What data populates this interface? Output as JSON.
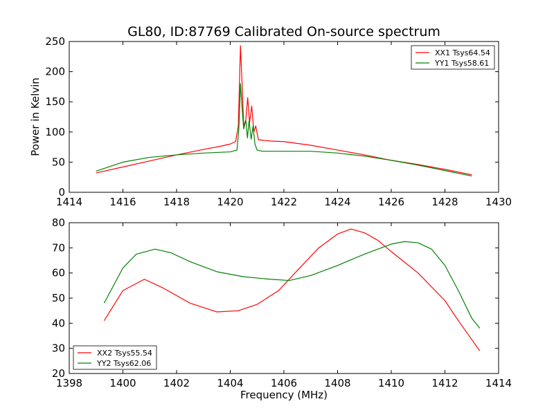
{
  "chart_data": [
    {
      "type": "line",
      "title": "GL80, ID:87769 Calibrated On-source spectrum",
      "xlabel": "",
      "ylabel": "Power in Kelvin",
      "xlim": [
        1414,
        1430
      ],
      "ylim": [
        0,
        250
      ],
      "xticks": [
        1414,
        1416,
        1418,
        1420,
        1422,
        1424,
        1426,
        1428,
        1430
      ],
      "yticks": [
        0,
        50,
        100,
        150,
        200,
        250
      ],
      "legend_position": "top-right",
      "series": [
        {
          "name": "XX1 Tsys64.54",
          "color": "#ff0000",
          "points": [
            [
              1415.0,
              32
            ],
            [
              1416.0,
              42
            ],
            [
              1417.0,
              52
            ],
            [
              1418.0,
              62
            ],
            [
              1419.0,
              71
            ],
            [
              1419.6,
              76
            ],
            [
              1420.0,
              80
            ],
            [
              1420.2,
              84
            ],
            [
              1420.3,
              110
            ],
            [
              1420.38,
              243
            ],
            [
              1420.45,
              170
            ],
            [
              1420.5,
              110
            ],
            [
              1420.58,
              120
            ],
            [
              1420.65,
              157
            ],
            [
              1420.72,
              115
            ],
            [
              1420.8,
              143
            ],
            [
              1420.88,
              100
            ],
            [
              1420.95,
              110
            ],
            [
              1421.05,
              87
            ],
            [
              1421.5,
              85
            ],
            [
              1422.0,
              84
            ],
            [
              1423.0,
              78
            ],
            [
              1424.0,
              70
            ],
            [
              1425.0,
              62
            ],
            [
              1426.0,
              53
            ],
            [
              1427.0,
              46
            ],
            [
              1428.0,
              38
            ],
            [
              1429.0,
              29
            ]
          ]
        },
        {
          "name": "YY1 Tsys58.61",
          "color": "#008000",
          "points": [
            [
              1415.0,
              35
            ],
            [
              1416.0,
              50
            ],
            [
              1417.0,
              58
            ],
            [
              1418.0,
              62
            ],
            [
              1419.0,
              65
            ],
            [
              1420.0,
              67
            ],
            [
              1420.25,
              70
            ],
            [
              1420.32,
              105
            ],
            [
              1420.38,
              180
            ],
            [
              1420.44,
              140
            ],
            [
              1420.5,
              105
            ],
            [
              1420.58,
              120
            ],
            [
              1420.64,
              90
            ],
            [
              1420.7,
              118
            ],
            [
              1420.78,
              88
            ],
            [
              1420.85,
              110
            ],
            [
              1420.92,
              80
            ],
            [
              1421.0,
              70
            ],
            [
              1421.2,
              68
            ],
            [
              1422.0,
              68
            ],
            [
              1423.0,
              68
            ],
            [
              1424.0,
              65
            ],
            [
              1425.0,
              60
            ],
            [
              1426.0,
              53
            ],
            [
              1427.0,
              45
            ],
            [
              1428.0,
              36
            ],
            [
              1429.0,
              27
            ]
          ]
        }
      ]
    },
    {
      "type": "line",
      "title": "",
      "xlabel": "Frequency (MHz)",
      "ylabel": "",
      "xlim": [
        1398,
        1414
      ],
      "ylim": [
        20,
        80
      ],
      "xticks": [
        1398,
        1400,
        1402,
        1404,
        1406,
        1408,
        1410,
        1412,
        1414
      ],
      "yticks": [
        20,
        30,
        40,
        50,
        60,
        70,
        80
      ],
      "legend_position": "bottom-left",
      "series": [
        {
          "name": "XX2 Tsys55.54",
          "color": "#ff0000",
          "points": [
            [
              1399.3,
              41
            ],
            [
              1400.0,
              53
            ],
            [
              1400.8,
              57.5
            ],
            [
              1401.5,
              54
            ],
            [
              1402.5,
              48
            ],
            [
              1403.5,
              44.5
            ],
            [
              1404.3,
              45
            ],
            [
              1405.0,
              47.5
            ],
            [
              1405.8,
              53
            ],
            [
              1406.5,
              61
            ],
            [
              1407.3,
              70
            ],
            [
              1408.0,
              75.5
            ],
            [
              1408.5,
              77.5
            ],
            [
              1409.0,
              76
            ],
            [
              1409.5,
              73
            ],
            [
              1410.0,
              68.5
            ],
            [
              1411.0,
              60
            ],
            [
              1412.0,
              49
            ],
            [
              1412.5,
              41
            ],
            [
              1413.3,
              29
            ]
          ]
        },
        {
          "name": "YY2 Tsys62.06",
          "color": "#008000",
          "points": [
            [
              1399.3,
              48
            ],
            [
              1400.0,
              62
            ],
            [
              1400.5,
              67.5
            ],
            [
              1401.2,
              69.5
            ],
            [
              1401.8,
              68
            ],
            [
              1402.5,
              64.5
            ],
            [
              1403.5,
              60.5
            ],
            [
              1404.5,
              58.5
            ],
            [
              1405.5,
              57.5
            ],
            [
              1406.2,
              57
            ],
            [
              1407.0,
              59
            ],
            [
              1408.0,
              63
            ],
            [
              1409.0,
              67.5
            ],
            [
              1410.0,
              71.5
            ],
            [
              1410.5,
              72.5
            ],
            [
              1411.0,
              72
            ],
            [
              1411.5,
              69.5
            ],
            [
              1412.0,
              63
            ],
            [
              1412.5,
              53
            ],
            [
              1413.0,
              42
            ],
            [
              1413.3,
              38
            ]
          ]
        }
      ]
    }
  ]
}
